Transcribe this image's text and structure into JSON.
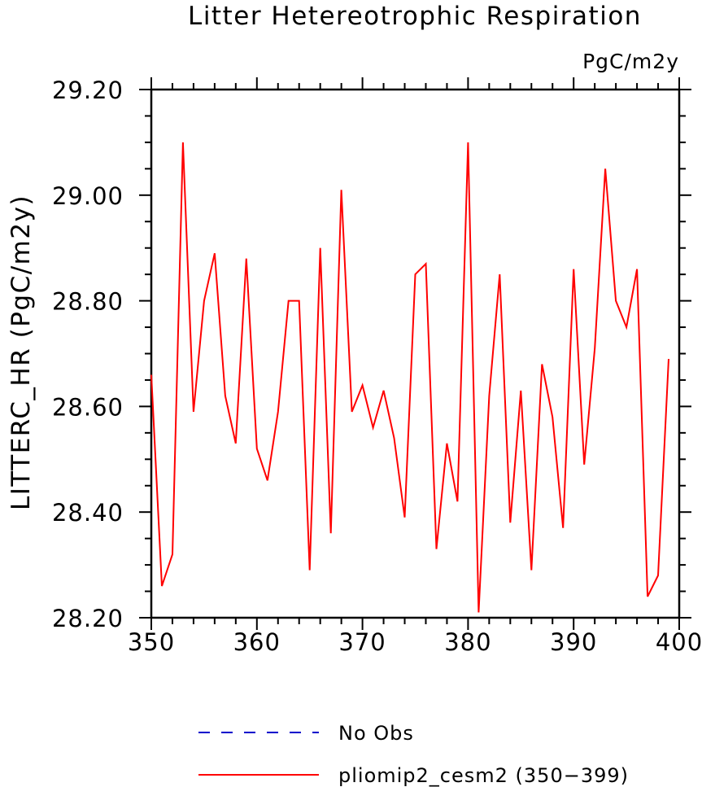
{
  "chart_data": {
    "type": "line",
    "title": "Litter Hetereotrophic Respiration",
    "units_label": "PgC/m2y",
    "ylabel": "LITTERC_HR   (PgC/m2y)",
    "xlabel": "",
    "xlim": [
      350,
      400
    ],
    "ylim": [
      28.2,
      29.2
    ],
    "xticks": [
      350,
      360,
      370,
      380,
      390,
      400
    ],
    "xtick_labels": [
      "350",
      "360",
      "370",
      "380",
      "390",
      "400"
    ],
    "yticks": [
      28.2,
      28.4,
      28.6,
      28.8,
      29.0,
      29.2
    ],
    "ytick_labels": [
      "28.20",
      "28.40",
      "28.60",
      "28.80",
      "29.00",
      "29.20"
    ],
    "grid": false,
    "legend_position": "bottom",
    "series": [
      {
        "name": "pliomip2_cesm2 (350-399)",
        "color": "#ff0000",
        "style": "solid",
        "x": [
          350,
          351,
          352,
          353,
          354,
          355,
          356,
          357,
          358,
          359,
          360,
          361,
          362,
          363,
          364,
          365,
          366,
          367,
          368,
          369,
          370,
          371,
          372,
          373,
          374,
          375,
          376,
          377,
          378,
          379,
          380,
          381,
          382,
          383,
          384,
          385,
          386,
          387,
          388,
          389,
          390,
          391,
          392,
          393,
          394,
          395,
          396,
          397,
          398,
          399
        ],
        "y": [
          28.66,
          28.26,
          28.32,
          29.1,
          28.59,
          28.8,
          28.89,
          28.62,
          28.53,
          28.88,
          28.52,
          28.46,
          28.59,
          28.8,
          28.8,
          28.29,
          28.9,
          28.36,
          29.01,
          28.59,
          28.64,
          28.56,
          28.63,
          28.54,
          28.39,
          28.85,
          28.87,
          28.33,
          28.53,
          28.42,
          29.1,
          28.21,
          28.62,
          28.85,
          28.38,
          28.63,
          28.29,
          28.68,
          28.58,
          28.37,
          28.86,
          28.49,
          28.71,
          29.05,
          28.8,
          28.75,
          28.86,
          28.24,
          28.28,
          28.69
        ]
      }
    ],
    "legend": [
      {
        "label": "No Obs",
        "color": "#0000cc",
        "style": "dashed"
      },
      {
        "label": "pliomip2_cesm2 (350−399)",
        "color": "#ff0000",
        "style": "solid"
      }
    ]
  }
}
